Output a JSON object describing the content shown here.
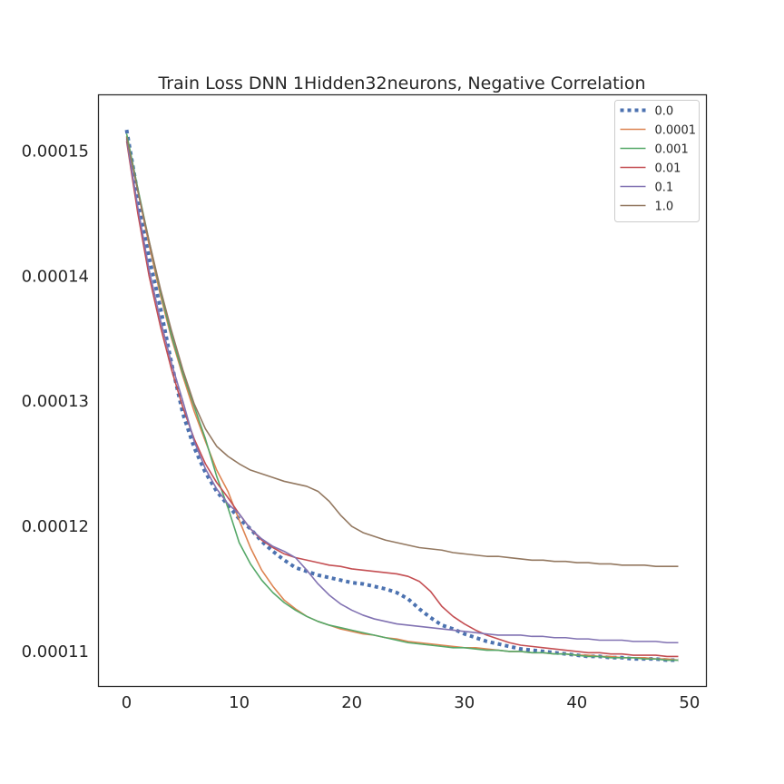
{
  "chart_data": {
    "type": "line",
    "title": "Train Loss DNN 1Hidden32neurons, Negative Correlation",
    "xlabel": "",
    "ylabel": "",
    "xlim": [
      -2.5,
      51.5
    ],
    "ylim": [
      0.0001072,
      0.0001545
    ],
    "xticks": [
      0,
      10,
      20,
      30,
      40,
      50
    ],
    "yticks": [
      0.00011,
      0.00012,
      0.00013,
      0.00014,
      0.00015
    ],
    "ytick_labels": [
      "0.00011",
      "0.00012",
      "0.00013",
      "0.00014",
      "0.00015"
    ],
    "grid": false,
    "legend_position": "top-right",
    "x": [
      0,
      1,
      2,
      3,
      4,
      5,
      6,
      7,
      8,
      9,
      10,
      11,
      12,
      13,
      14,
      15,
      16,
      17,
      18,
      19,
      20,
      21,
      22,
      23,
      24,
      25,
      26,
      27,
      28,
      29,
      30,
      31,
      32,
      33,
      34,
      35,
      36,
      37,
      38,
      39,
      40,
      41,
      42,
      43,
      44,
      45,
      46,
      47,
      48,
      49
    ],
    "series": [
      {
        "name": "0.0",
        "color": "#4c72b0",
        "style": "dotted",
        "values": [
          0.0001517,
          0.0001465,
          0.0001415,
          0.0001375,
          0.000133,
          0.000129,
          0.0001263,
          0.0001243,
          0.0001228,
          0.0001217,
          0.0001206,
          0.0001198,
          0.0001188,
          0.000118,
          0.0001173,
          0.0001167,
          0.0001164,
          0.0001161,
          0.0001159,
          0.0001157,
          0.0001155,
          0.0001154,
          0.0001152,
          0.000115,
          0.0001147,
          0.0001142,
          0.0001134,
          0.0001127,
          0.0001121,
          0.0001118,
          0.0001114,
          0.0001111,
          0.0001108,
          0.0001106,
          0.0001104,
          0.0001102,
          0.0001101,
          0.00011,
          0.0001099,
          0.0001098,
          0.0001097,
          0.0001096,
          0.0001096,
          0.0001095,
          0.0001095,
          0.0001094,
          0.0001094,
          0.0001094,
          0.0001093,
          0.0001093
        ]
      },
      {
        "name": "0.0001",
        "color": "#dd8452",
        "style": "solid",
        "values": [
          0.0001512,
          0.0001468,
          0.0001425,
          0.0001385,
          0.000135,
          0.000132,
          0.0001292,
          0.0001268,
          0.0001245,
          0.0001228,
          0.0001205,
          0.0001183,
          0.0001165,
          0.0001152,
          0.0001141,
          0.0001134,
          0.0001128,
          0.0001124,
          0.0001121,
          0.0001118,
          0.0001116,
          0.0001114,
          0.0001113,
          0.0001111,
          0.000111,
          0.0001108,
          0.0001107,
          0.0001106,
          0.0001105,
          0.0001104,
          0.0001103,
          0.0001103,
          0.0001102,
          0.0001101,
          0.00011,
          0.00011,
          0.0001099,
          0.0001099,
          0.0001098,
          0.0001098,
          0.0001097,
          0.0001097,
          0.0001096,
          0.0001096,
          0.0001095,
          0.0001095,
          0.0001095,
          0.0001094,
          0.0001094,
          0.0001093
        ]
      },
      {
        "name": "0.001",
        "color": "#55a868",
        "style": "solid",
        "values": [
          0.0001514,
          0.000147,
          0.0001428,
          0.0001388,
          0.0001352,
          0.0001322,
          0.0001296,
          0.000127,
          0.000124,
          0.0001215,
          0.0001187,
          0.000117,
          0.0001157,
          0.0001147,
          0.0001139,
          0.0001133,
          0.0001128,
          0.0001124,
          0.0001121,
          0.0001119,
          0.0001117,
          0.0001115,
          0.0001113,
          0.0001111,
          0.0001109,
          0.0001107,
          0.0001106,
          0.0001105,
          0.0001104,
          0.0001103,
          0.0001103,
          0.0001102,
          0.0001101,
          0.0001101,
          0.00011,
          0.00011,
          0.0001099,
          0.0001099,
          0.0001098,
          0.0001098,
          0.0001097,
          0.0001096,
          0.0001096,
          0.0001095,
          0.0001095,
          0.0001095,
          0.0001094,
          0.0001094,
          0.0001093,
          0.0001093
        ]
      },
      {
        "name": "0.01",
        "color": "#c44e52",
        "style": "solid",
        "values": [
          0.0001508,
          0.000145,
          0.00014,
          0.000136,
          0.0001325,
          0.0001295,
          0.000127,
          0.000125,
          0.0001235,
          0.0001223,
          0.000121,
          0.0001198,
          0.0001189,
          0.0001183,
          0.0001178,
          0.0001175,
          0.0001173,
          0.0001171,
          0.0001169,
          0.0001168,
          0.0001166,
          0.0001165,
          0.0001164,
          0.0001163,
          0.0001162,
          0.000116,
          0.0001156,
          0.0001148,
          0.0001136,
          0.0001128,
          0.0001122,
          0.0001117,
          0.0001113,
          0.000111,
          0.0001107,
          0.0001105,
          0.0001104,
          0.0001103,
          0.0001102,
          0.0001101,
          0.00011,
          0.0001099,
          0.0001099,
          0.0001098,
          0.0001098,
          0.0001097,
          0.0001097,
          0.0001097,
          0.0001096,
          0.0001096
        ]
      },
      {
        "name": "0.1",
        "color": "#8172b2",
        "style": "solid",
        "values": [
          0.000151,
          0.0001455,
          0.0001405,
          0.0001365,
          0.000133,
          0.00013,
          0.0001268,
          0.0001246,
          0.000123,
          0.0001218,
          0.000121,
          0.0001198,
          0.000119,
          0.0001184,
          0.000118,
          0.0001175,
          0.0001165,
          0.0001154,
          0.0001145,
          0.0001138,
          0.0001133,
          0.0001129,
          0.0001126,
          0.0001124,
          0.0001122,
          0.0001121,
          0.000112,
          0.0001119,
          0.0001118,
          0.0001117,
          0.0001116,
          0.0001115,
          0.0001114,
          0.0001113,
          0.0001113,
          0.0001113,
          0.0001112,
          0.0001112,
          0.0001111,
          0.0001111,
          0.000111,
          0.000111,
          0.0001109,
          0.0001109,
          0.0001109,
          0.0001108,
          0.0001108,
          0.0001108,
          0.0001107,
          0.0001107
        ]
      },
      {
        "name": "1.0",
        "color": "#937860",
        "style": "solid",
        "values": [
          0.0001511,
          0.0001468,
          0.0001428,
          0.000139,
          0.0001356,
          0.0001325,
          0.0001298,
          0.0001278,
          0.0001264,
          0.0001256,
          0.000125,
          0.0001245,
          0.0001242,
          0.0001239,
          0.0001236,
          0.0001234,
          0.0001232,
          0.0001228,
          0.000122,
          0.0001209,
          0.00012,
          0.0001195,
          0.0001192,
          0.0001189,
          0.0001187,
          0.0001185,
          0.0001183,
          0.0001182,
          0.0001181,
          0.0001179,
          0.0001178,
          0.0001177,
          0.0001176,
          0.0001176,
          0.0001175,
          0.0001174,
          0.0001173,
          0.0001173,
          0.0001172,
          0.0001172,
          0.0001171,
          0.0001171,
          0.000117,
          0.000117,
          0.0001169,
          0.0001169,
          0.0001169,
          0.0001168,
          0.0001168,
          0.0001168
        ]
      }
    ]
  }
}
